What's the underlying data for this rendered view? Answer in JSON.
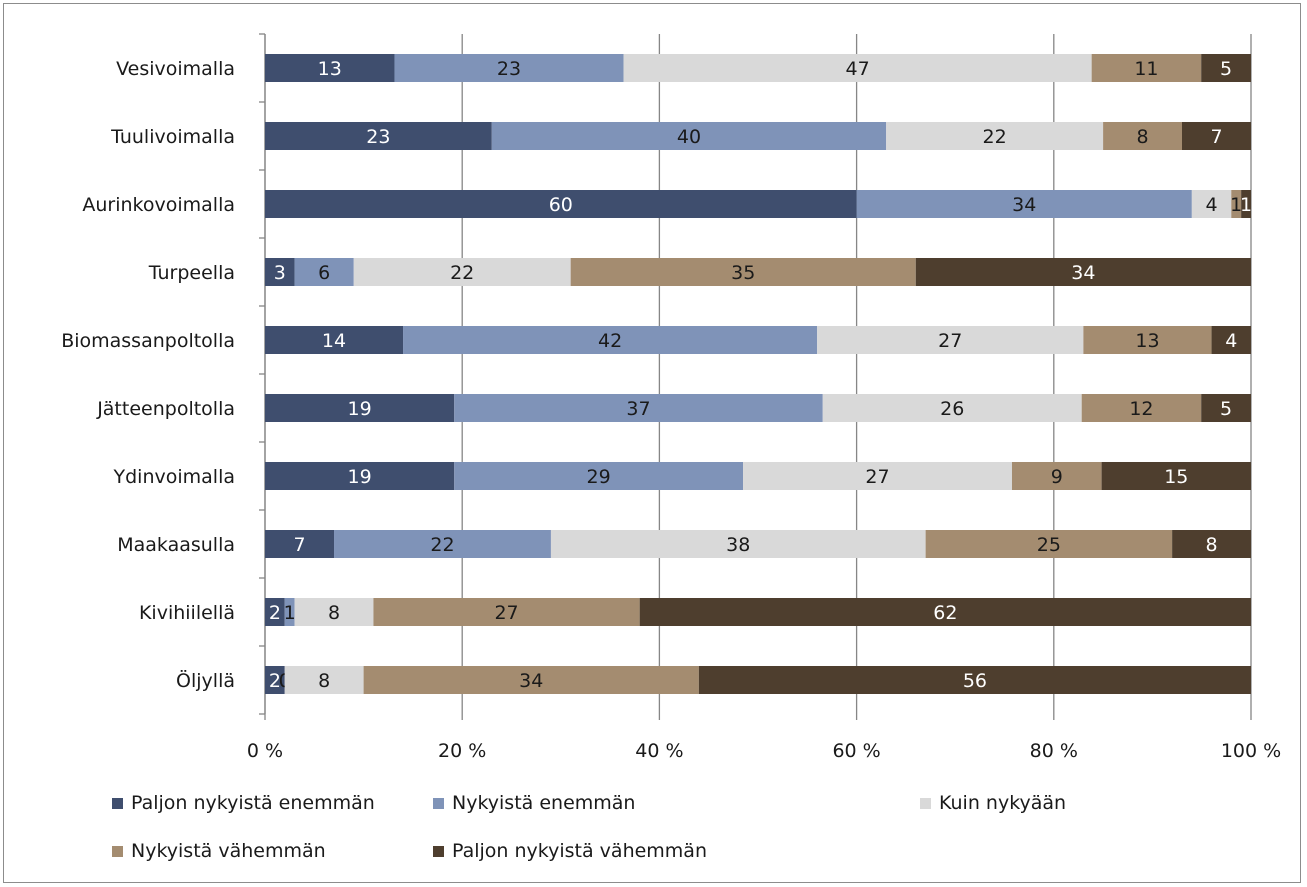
{
  "chart_data": {
    "type": "bar",
    "orientation": "horizontal",
    "stacked": "percent",
    "categories": [
      "Vesivoimalla",
      "Tuulivoimalla",
      "Aurinkovoimalla",
      "Turpeella",
      "Biomassanpoltolla",
      "Jätteenpoltolla",
      "Ydinvoimalla",
      "Maakaasulla",
      "Kivihiilellä",
      "Öljyllä"
    ],
    "series": [
      {
        "name": "Paljon nykyistä enemmän",
        "color": "#3f4e6e",
        "values": [
          13,
          23,
          60,
          3,
          14,
          19,
          19,
          7,
          2,
          2
        ]
      },
      {
        "name": "Nykyistä enemmän",
        "color": "#7f93b8",
        "values": [
          23,
          40,
          34,
          6,
          42,
          37,
          29,
          22,
          1,
          0
        ]
      },
      {
        "name": "Kuin nykyään",
        "color": "#d9d9d9",
        "values": [
          47,
          22,
          4,
          22,
          27,
          26,
          27,
          38,
          8,
          8
        ]
      },
      {
        "name": "Nykyistä vähemmän",
        "color": "#a48c70",
        "values": [
          11,
          8,
          1,
          35,
          13,
          12,
          9,
          25,
          27,
          34
        ]
      },
      {
        "name": "Paljon nykyistä vähemmän",
        "color": "#4e3e2e",
        "values": [
          5,
          7,
          1,
          34,
          4,
          5,
          15,
          8,
          62,
          56
        ]
      }
    ],
    "x_ticks": [
      "0 %",
      "20 %",
      "40 %",
      "60 %",
      "80 %",
      "100 %"
    ],
    "xlim": [
      0,
      100
    ],
    "grid": "vertical",
    "legend": "bottom"
  }
}
